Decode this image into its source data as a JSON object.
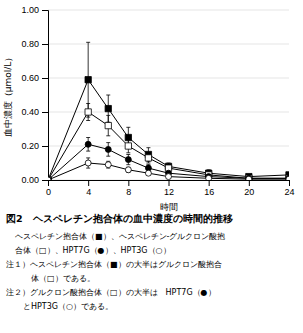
{
  "chart_data": {
    "type": "line",
    "title": "図2　ヘスペレチン抱合体の血中濃度の時間的推移",
    "annotations": [
      "ヘスペレチン抱合体（■）、ヘスペレチン-グルクロン酸抱",
      "合体（□）、HPT7G（●）、HPT3G（○）",
      "注１）ヘスペレチン抱合体（■）の大半はグルクロン酸抱合",
      "　　体（□）である。",
      "注２）グルクロン酸抱合体（□）の大半は　HPT7G（●）",
      "　とHPT3G（○）である。"
    ],
    "xlabel": "時間",
    "ylabel": "血中濃度（μmol/L）",
    "x": [
      0,
      4,
      6,
      8,
      10,
      12,
      16,
      20,
      24
    ],
    "series": [
      {
        "color": "#000000",
        "marker": "square",
        "values": [
          0.0,
          0.59,
          0.42,
          0.25,
          0.15,
          0.08,
          0.04,
          0.02,
          0.03
        ],
        "yerr": [
          0.0,
          0.22,
          0.08,
          0.06,
          0.04,
          0.02,
          0.02,
          0.01,
          0.01
        ]
      },
      {
        "color": "#000000",
        "marker": "square-open",
        "values": [
          0.0,
          0.4,
          0.32,
          0.2,
          0.13,
          0.07,
          0.03,
          0.01,
          0.01
        ],
        "yerr": [
          0.0,
          0.05,
          0.06,
          0.04,
          0.03,
          0.02,
          0.01,
          0.005,
          0.005
        ]
      },
      {
        "color": "#000000",
        "marker": "circle",
        "values": [
          0.0,
          0.21,
          0.18,
          0.12,
          0.07,
          0.04,
          0.02,
          0.01,
          0.01
        ],
        "yerr": [
          0.0,
          0.04,
          0.04,
          0.03,
          0.02,
          0.01,
          0.01,
          0.005,
          0.005
        ]
      },
      {
        "color": "#000000",
        "marker": "circle-open",
        "values": [
          0.0,
          0.1,
          0.09,
          0.06,
          0.04,
          0.02,
          0.01,
          0.005,
          0.005
        ],
        "yerr": [
          0.0,
          0.03,
          0.02,
          0.015,
          0.01,
          0.005,
          0.005,
          0.002,
          0.002
        ]
      }
    ],
    "xlim": [
      0,
      24
    ],
    "ylim": [
      0,
      1.0
    ],
    "xticks": [
      0,
      4,
      8,
      12,
      16,
      20,
      24
    ],
    "yticks": [
      {
        "value": 0.0,
        "label": "0.00"
      },
      {
        "value": 0.2,
        "label": "0.20"
      },
      {
        "value": 0.4,
        "label": "0.40"
      },
      {
        "value": 0.6,
        "label": "0.60"
      },
      {
        "value": 0.8,
        "label": "0.80"
      },
      {
        "value": 1.0,
        "label": "1.00"
      }
    ]
  }
}
